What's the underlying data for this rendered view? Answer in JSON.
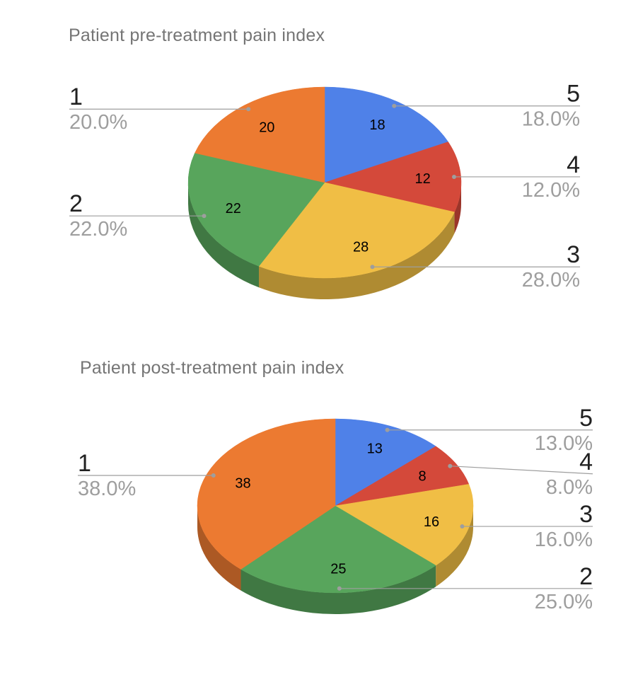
{
  "styles": {
    "background": "#ffffff",
    "title_color": "#757575",
    "name_label_color": "#212121",
    "percent_label_color": "#9e9e9e",
    "leader_line_color": "#9e9e9e",
    "slice_value_color": "#000000"
  },
  "chart_data": [
    {
      "type": "pie",
      "variant": "3d",
      "title": "Patient pre-treatment pain index",
      "direction": "clockwise",
      "start_angle_deg": 0,
      "total": 100,
      "legend_position": "outside-labels-with-leader-lines",
      "slices": [
        {
          "label": "5",
          "value": 18,
          "percent_label": "18.0%",
          "color": "#4F81E8"
        },
        {
          "label": "4",
          "value": 12,
          "percent_label": "12.0%",
          "color": "#D4493A"
        },
        {
          "label": "3",
          "value": 28,
          "percent_label": "28.0%",
          "color": "#F0BE45"
        },
        {
          "label": "2",
          "value": 22,
          "percent_label": "22.0%",
          "color": "#58A55C"
        },
        {
          "label": "1",
          "value": 20,
          "percent_label": "20.0%",
          "color": "#EC7A31"
        }
      ]
    },
    {
      "type": "pie",
      "variant": "3d",
      "title": "Patient post-treatment pain index",
      "direction": "clockwise",
      "start_angle_deg": 0,
      "total": 100,
      "legend_position": "outside-labels-with-leader-lines",
      "slices": [
        {
          "label": "5",
          "value": 13,
          "percent_label": "13.0%",
          "color": "#4F81E8"
        },
        {
          "label": "4",
          "value": 8,
          "percent_label": "8.0%",
          "color": "#D4493A"
        },
        {
          "label": "3",
          "value": 16,
          "percent_label": "16.0%",
          "color": "#F0BE45"
        },
        {
          "label": "2",
          "value": 25,
          "percent_label": "25.0%",
          "color": "#58A55C"
        },
        {
          "label": "1",
          "value": 38,
          "percent_label": "38.0%",
          "color": "#EC7A31"
        }
      ]
    }
  ]
}
